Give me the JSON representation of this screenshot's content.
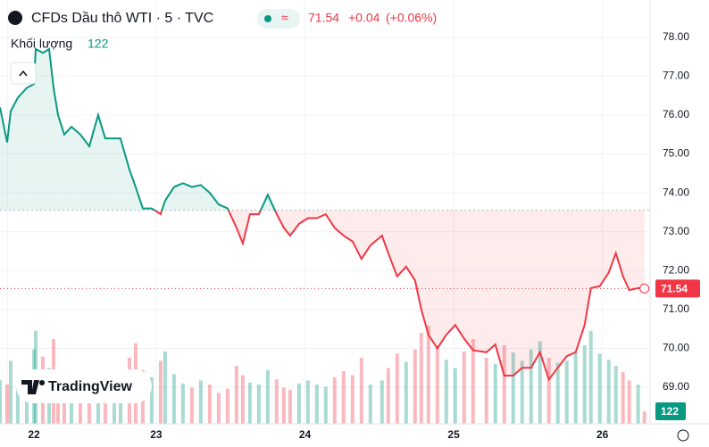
{
  "chart_data": {
    "type": "line",
    "title": "CFDs Dầu thô WTI · 5 · TVC",
    "change": "+0.04",
    "change_pct": "(+0.06%)",
    "volume_label": "Khối lượng",
    "brand": "TradingView",
    "x": [
      21.95,
      21.998,
      22.022,
      22.07,
      22.13,
      22.178,
      22.19,
      22.238,
      22.28,
      22.31,
      22.34,
      22.382,
      22.43,
      22.49,
      22.55,
      22.61,
      22.658,
      22.718,
      22.76,
      22.82,
      22.862,
      22.91,
      22.97,
      23.03,
      23.06,
      23.12,
      23.18,
      23.24,
      23.3,
      23.36,
      23.42,
      23.48,
      23.54,
      23.582,
      23.63,
      23.69,
      23.75,
      23.81,
      23.858,
      23.9,
      23.96,
      24.02,
      24.08,
      24.14,
      24.2,
      24.26,
      24.32,
      24.38,
      24.44,
      24.518,
      24.56,
      24.62,
      24.68,
      24.74,
      24.782,
      24.83,
      24.89,
      24.95,
      25.01,
      25.07,
      25.13,
      25.22,
      25.28,
      25.34,
      25.4,
      25.46,
      25.52,
      25.58,
      25.64,
      25.7,
      25.76,
      25.82,
      25.88,
      25.922,
      25.982,
      26.042,
      26.09,
      26.138,
      26.18,
      26.24,
      26.282
    ],
    "values": [
      76.2,
      75.3,
      76.1,
      76.45,
      76.7,
      76.8,
      77.7,
      77.6,
      77.7,
      76.7,
      76.0,
      75.5,
      75.7,
      75.5,
      75.2,
      76.0,
      75.4,
      75.4,
      75.4,
      74.6,
      74.15,
      73.6,
      73.6,
      73.45,
      73.8,
      74.15,
      74.25,
      74.15,
      74.2,
      74.0,
      73.7,
      73.6,
      73.1,
      72.7,
      73.45,
      73.45,
      73.95,
      73.45,
      73.1,
      72.9,
      73.2,
      73.35,
      73.35,
      73.45,
      73.1,
      72.9,
      72.75,
      72.3,
      72.65,
      72.9,
      72.45,
      71.85,
      72.1,
      71.75,
      71.0,
      70.35,
      70.0,
      70.35,
      70.6,
      70.25,
      69.95,
      69.9,
      70.1,
      69.3,
      69.3,
      69.5,
      69.5,
      69.9,
      69.2,
      69.5,
      69.8,
      69.9,
      70.6,
      71.55,
      71.6,
      71.95,
      72.45,
      71.85,
      71.5,
      71.55,
      71.54
    ],
    "volume": [
      420,
      380,
      610,
      350,
      300,
      720,
      900,
      650,
      540,
      820,
      470,
      390,
      360,
      300,
      410,
      350,
      290,
      330,
      380,
      640,
      780,
      520,
      450,
      610,
      700,
      480,
      390,
      350,
      420,
      380,
      300,
      340,
      560,
      470,
      400,
      380,
      520,
      430,
      350,
      330,
      390,
      420,
      380,
      360,
      450,
      510,
      470,
      640,
      380,
      420,
      540,
      680,
      600,
      720,
      880,
      950,
      760,
      620,
      540,
      700,
      820,
      640,
      580,
      760,
      690,
      610,
      720,
      800,
      640,
      590,
      610,
      700,
      760,
      900,
      680,
      620,
      560,
      500,
      420,
      380,
      122
    ],
    "baseline": 73.55,
    "up_color": "#089981",
    "down_color": "#f23645",
    "xlim": [
      21.95,
      26.32
    ],
    "xticks": [
      22,
      23,
      24,
      25,
      26
    ],
    "ylim": [
      68.06,
      78.96
    ],
    "yticks": [
      {
        "value": 69,
        "label": "69.00"
      },
      {
        "value": 70,
        "label": "70.00"
      },
      {
        "value": 71,
        "label": "71.00"
      },
      {
        "value": 72,
        "label": "72.00"
      },
      {
        "value": 73,
        "label": "73.00"
      },
      {
        "value": 74,
        "label": "74.00"
      },
      {
        "value": 75,
        "label": "75.00"
      },
      {
        "value": 76,
        "label": "76.00"
      },
      {
        "value": 77,
        "label": "77.00"
      },
      {
        "value": 78,
        "label": "78.00"
      }
    ],
    "grid": true
  }
}
